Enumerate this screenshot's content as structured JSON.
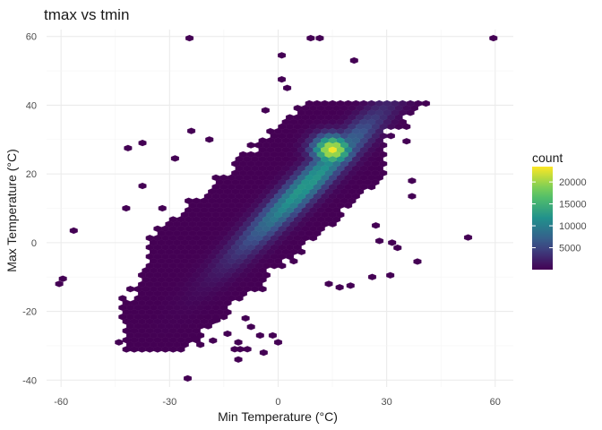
{
  "chart_data": {
    "type": "heatmap",
    "title": "tmax vs tmin",
    "xlabel": "Min Temperature (°C)",
    "ylabel": "Max Temperature (°C)",
    "xlim": [
      -64,
      65
    ],
    "ylim": [
      -42,
      62
    ],
    "x_ticks": [
      -60,
      -30,
      0,
      30,
      60
    ],
    "y_ticks": [
      -40,
      -20,
      0,
      20,
      40,
      60
    ],
    "grid": true,
    "legend": {
      "title": "count",
      "placement": "right",
      "range": [
        1,
        23500
      ],
      "ticks": [
        5000,
        10000,
        15000,
        20000
      ],
      "tick_labels": [
        "5000",
        "10000",
        "15000",
        "20000"
      ],
      "colors": [
        "#440154",
        "#3b528b",
        "#21918c",
        "#5ec962",
        "#fde725"
      ]
    },
    "density_model": {
      "center": [
        12,
        24
      ],
      "ridge_slope": 0.92,
      "description_free": true,
      "main_body": {
        "xmin": -44,
        "xmax": 42,
        "band_below": -16,
        "band_above": 22,
        "ymin": -30,
        "ymax": 40
      },
      "peak": {
        "x": 15,
        "y": 27,
        "count": 23500
      }
    },
    "outliers": [
      [
        -24.5,
        59.5
      ],
      [
        9,
        59.5
      ],
      [
        11.5,
        59.5
      ],
      [
        59.5,
        59.5
      ],
      [
        1,
        54.5
      ],
      [
        21,
        53
      ],
      [
        1,
        47.5
      ],
      [
        2.5,
        45
      ],
      [
        -3.5,
        38.5
      ],
      [
        -24,
        32.5
      ],
      [
        -19,
        30
      ],
      [
        -37.5,
        29
      ],
      [
        -41.5,
        27.5
      ],
      [
        -28.5,
        24.5
      ],
      [
        -37.5,
        16.5
      ],
      [
        -32,
        10
      ],
      [
        -42,
        10
      ],
      [
        -56.5,
        3.5
      ],
      [
        -59.5,
        -10.5
      ],
      [
        -60.5,
        -12
      ],
      [
        52.5,
        1.5
      ],
      [
        38.5,
        -5.5
      ],
      [
        31,
        -9.5
      ],
      [
        33,
        -1.5
      ],
      [
        31.5,
        0
      ],
      [
        28,
        0.5
      ],
      [
        27,
        5
      ],
      [
        37,
        18
      ],
      [
        37,
        13.5
      ],
      [
        35.5,
        29.5
      ],
      [
        -44,
        -29
      ],
      [
        -25,
        -39.5
      ],
      [
        0,
        -29
      ],
      [
        -18,
        -28.5
      ],
      [
        -12,
        -31
      ],
      [
        -10.5,
        -31
      ],
      [
        -8.5,
        -31
      ],
      [
        -11,
        -34
      ],
      [
        -4,
        -32
      ],
      [
        -11,
        -29
      ],
      [
        -14,
        -26.5
      ],
      [
        -7.5,
        -24.5
      ],
      [
        -5,
        -27
      ],
      [
        -1.5,
        -27
      ],
      [
        17,
        -13
      ],
      [
        20,
        -12.5
      ],
      [
        14,
        -12
      ],
      [
        26,
        -10
      ],
      [
        -9,
        -22
      ],
      [
        -17,
        -22.5
      ],
      [
        -23,
        -28
      ]
    ]
  }
}
